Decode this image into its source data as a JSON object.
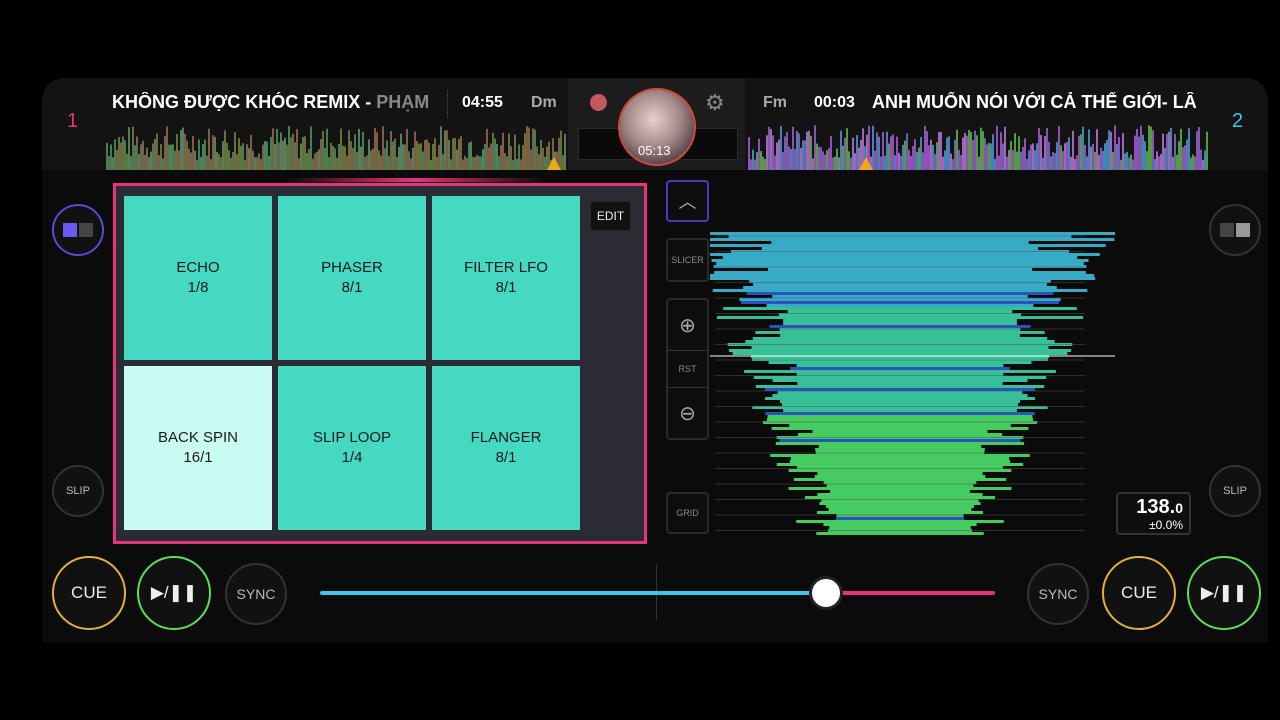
{
  "deck1": {
    "number": "1",
    "title_main": "KHÔNG ĐƯỢC KHÓC REMIX - ",
    "title_artist": "PHẠM",
    "time": "04:55",
    "key": "Dm"
  },
  "deck2": {
    "number": "2",
    "title": "ANH MUỐN NÓI VỚI CẢ THẾ GIỚI- LÂ",
    "time": "00:03",
    "key": "Fm",
    "bpm_main": "138.",
    "bpm_decimal": "0",
    "pitch": "±0.0%"
  },
  "center": {
    "elapsed": "05:13",
    "record_icon": "record-icon",
    "settings_icon": "gear-icon"
  },
  "pads": {
    "edit": "EDIT",
    "items": [
      {
        "name": "ECHO",
        "value": "1/8",
        "active": false
      },
      {
        "name": "PHASER",
        "value": "8/1",
        "active": false
      },
      {
        "name": "FILTER LFO",
        "value": "8/1",
        "active": false
      },
      {
        "name": "BACK SPIN",
        "value": "16/1",
        "active": true
      },
      {
        "name": "SLIP LOOP",
        "value": "1/4",
        "active": false
      },
      {
        "name": "FLANGER",
        "value": "8/1",
        "active": false
      }
    ]
  },
  "side": {
    "slicer": "SLICER",
    "rst": "RST",
    "grid": "GRID",
    "slip": "SLIP"
  },
  "transport": {
    "cue": "CUE",
    "play": "▶/❚❚",
    "sync": "SYNC"
  },
  "crossfader": {
    "position": 0.75
  },
  "colors": {
    "accent_pink": "#e8337a",
    "accent_blue": "#3bc8e8",
    "pad": "#45d9c2",
    "pad_active": "#c9fbf3",
    "cue": "#e0b040",
    "play": "#5fdc5a"
  }
}
